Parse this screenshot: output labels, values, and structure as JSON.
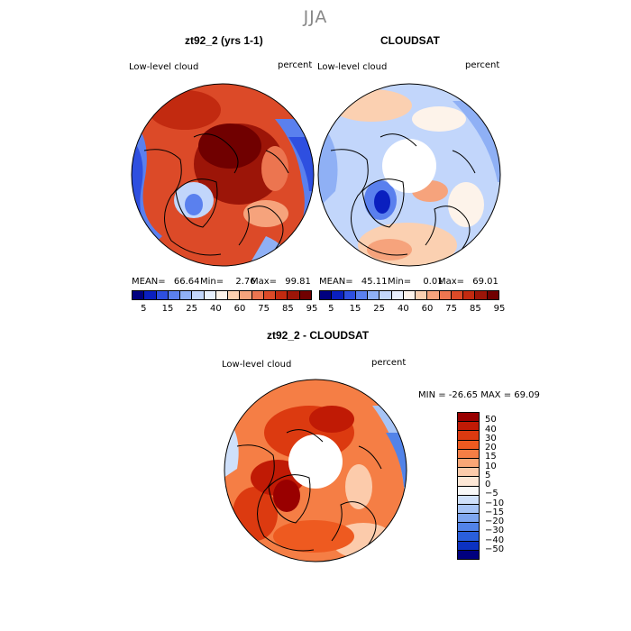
{
  "season": "JJA",
  "panels": [
    {
      "title": "zt92_2 (yrs 1-1)",
      "variable": "Low-level cloud",
      "units": "percent",
      "stats": {
        "mean_label": "MEAN=",
        "mean": "66.64",
        "min_label": "Min=",
        "min": "2.76",
        "max_label": "Max=",
        "max": "99.81"
      }
    },
    {
      "title": "CLOUDSAT",
      "variable": "Low-level cloud",
      "units": "percent",
      "stats": {
        "mean_label": "MEAN=",
        "mean": "45.11",
        "min_label": "Min=",
        "min": "0.01",
        "max_label": "Max=",
        "max": "69.01"
      }
    }
  ],
  "abs_colorbar": {
    "labels": [
      "5",
      "15",
      "25",
      "40",
      "60",
      "75",
      "85",
      "95"
    ],
    "colors": [
      "#00007f",
      "#0a1fbf",
      "#2e4fe0",
      "#5a80ee",
      "#8fb0f5",
      "#c2d6fb",
      "#e8f0fd",
      "#fdf3ea",
      "#fbd0b1",
      "#f6a37c",
      "#ec7550",
      "#dc4a28",
      "#c22a10",
      "#9c1508",
      "#700000"
    ]
  },
  "diff_panel": {
    "title": "zt92_2 - CLOUDSAT",
    "variable": "Low-level cloud",
    "units": "percent",
    "minmax": "MIN = -26.65 MAX =  69.09"
  },
  "diff_colorbar": {
    "labels": [
      "50",
      "40",
      "30",
      "20",
      "15",
      "10",
      "5",
      "0",
      "−5",
      "−10",
      "−15",
      "−20",
      "−30",
      "−40",
      "−50"
    ],
    "colors": [
      "#990000",
      "#c01a05",
      "#dc3a10",
      "#ee5a20",
      "#f57e45",
      "#f9a676",
      "#fccbab",
      "#fde7d6",
      "#f8f8f8",
      "#cfe0fa",
      "#a7c4f6",
      "#7ea6f0",
      "#5283e8",
      "#2a5fdc",
      "#0c32c2",
      "#00007f"
    ]
  }
}
